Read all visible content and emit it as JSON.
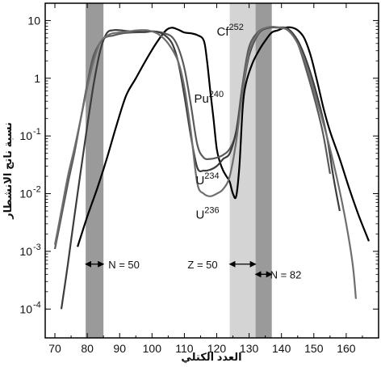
{
  "chart_data": {
    "type": "line",
    "title": "",
    "xlabel": "العدد الكتلي",
    "ylabel": "نسبة ناتج الانشطار",
    "xlim": [
      67,
      170
    ],
    "ylim_log10": [
      -4.5,
      1.3
    ],
    "y_scale": "log",
    "x_ticks": [
      70,
      80,
      90,
      100,
      110,
      120,
      130,
      140,
      150,
      160
    ],
    "x_tick_labels": [
      "70",
      "80",
      "90",
      "100",
      "110",
      "120",
      "130",
      "140",
      "150",
      "160"
    ],
    "y_ticks": [
      {
        "base": "10",
        "exp": "",
        "value": 10
      },
      {
        "base": "1",
        "exp": "",
        "value": 1
      },
      {
        "base": "10",
        "exp": "-1",
        "value": 0.1
      },
      {
        "base": "10",
        "exp": "-2",
        "value": 0.01
      },
      {
        "base": "10",
        "exp": "-3",
        "value": 0.001
      },
      {
        "base": "10",
        "exp": "-4",
        "value": 0.0001
      }
    ],
    "bands": [
      {
        "x0": 79.5,
        "x1": 85,
        "shade": "#9a9a9a"
      },
      {
        "x0": 124,
        "x1": 132,
        "shade": "#d4d4d4"
      },
      {
        "x0": 132,
        "x1": 137,
        "shade": "#9a9a9a"
      }
    ],
    "annotations": [
      {
        "text": "N = 50",
        "arrow_x": [
          79.5,
          85
        ],
        "y": 0.0006,
        "label_x": 86.5
      },
      {
        "text": "Z = 50",
        "arrow_x": [
          124,
          132
        ],
        "y": 0.0006,
        "label_x": 111
      },
      {
        "text": "N = 82",
        "arrow_x": [
          132,
          137
        ],
        "y": 0.0004,
        "label_x": 136.5
      }
    ],
    "series": [
      {
        "base": "Cf",
        "exp": "252",
        "color": "#000000",
        "label_pos": [
          120,
          5.5
        ],
        "points": [
          [
            77,
            0.0012
          ],
          [
            80,
            0.004
          ],
          [
            83,
            0.012
          ],
          [
            86,
            0.04
          ],
          [
            89,
            0.15
          ],
          [
            92,
            0.5
          ],
          [
            95,
            1.0
          ],
          [
            98,
            2.0
          ],
          [
            101,
            3.8
          ],
          [
            104,
            6.5
          ],
          [
            106,
            7.5
          ],
          [
            108,
            7.0
          ],
          [
            110,
            6.2
          ],
          [
            112,
            6.0
          ],
          [
            114,
            5.6
          ],
          [
            116,
            4.5
          ],
          [
            117,
            2.0
          ],
          [
            118,
            0.6
          ],
          [
            119,
            0.2
          ],
          [
            120,
            0.06
          ],
          [
            121,
            0.035
          ],
          [
            122,
            0.025
          ],
          [
            123,
            0.02
          ],
          [
            124,
            0.016
          ],
          [
            125,
            0.01
          ],
          [
            126,
            0.009
          ],
          [
            127,
            0.03
          ],
          [
            128,
            0.3
          ],
          [
            129,
            0.8
          ],
          [
            131,
            1.8
          ],
          [
            133,
            3.0
          ],
          [
            135,
            4.5
          ],
          [
            137,
            6.2
          ],
          [
            139,
            6.8
          ],
          [
            141,
            7.5
          ],
          [
            143,
            7.6
          ],
          [
            145,
            6.8
          ],
          [
            147,
            5.0
          ],
          [
            149,
            2.5
          ],
          [
            151,
            0.9
          ],
          [
            153,
            0.3
          ],
          [
            155,
            0.12
          ],
          [
            158,
            0.04
          ],
          [
            161,
            0.012
          ],
          [
            164,
            0.004
          ],
          [
            167,
            0.0015
          ]
        ]
      },
      {
        "base": "Pu",
        "exp": "240",
        "color": "#5a5a5a",
        "label_pos": [
          113,
          0.38
        ],
        "points": [
          [
            70,
            0.0011
          ],
          [
            72,
            0.004
          ],
          [
            74,
            0.015
          ],
          [
            76,
            0.05
          ],
          [
            78,
            0.2
          ],
          [
            80,
            0.8
          ],
          [
            82,
            2.5
          ],
          [
            85,
            4.8
          ],
          [
            88,
            5.5
          ],
          [
            91,
            6.0
          ],
          [
            94,
            6.2
          ],
          [
            97,
            6.3
          ],
          [
            100,
            6.5
          ],
          [
            103,
            6.2
          ],
          [
            106,
            5.3
          ],
          [
            108,
            3.5
          ],
          [
            110,
            1.5
          ],
          [
            112,
            0.35
          ],
          [
            114,
            0.07
          ],
          [
            116,
            0.042
          ],
          [
            118,
            0.04
          ],
          [
            120,
            0.042
          ],
          [
            122,
            0.047
          ],
          [
            124,
            0.06
          ],
          [
            126,
            0.12
          ],
          [
            128,
            0.8
          ],
          [
            130,
            3.5
          ],
          [
            133,
            6.5
          ],
          [
            136,
            7.5
          ],
          [
            139,
            7.5
          ],
          [
            142,
            6.8
          ],
          [
            145,
            4.0
          ],
          [
            148,
            1.2
          ],
          [
            151,
            0.3
          ],
          [
            153,
            0.1
          ],
          [
            155,
            0.022
          ]
        ]
      },
      {
        "base": "U",
        "exp": "234",
        "color": "#3c3c3c",
        "label_pos": [
          113.5,
          0.0145
        ],
        "points": [
          [
            72,
            0.0001
          ],
          [
            74,
            0.0006
          ],
          [
            76,
            0.004
          ],
          [
            78,
            0.025
          ],
          [
            80,
            0.15
          ],
          [
            82,
            0.8
          ],
          [
            84,
            3.0
          ],
          [
            86,
            6.0
          ],
          [
            88,
            6.8
          ],
          [
            90,
            6.8
          ],
          [
            92,
            6.6
          ],
          [
            95,
            6.4
          ],
          [
            98,
            6.3
          ],
          [
            100,
            6.5
          ],
          [
            103,
            6.0
          ],
          [
            106,
            4.2
          ],
          [
            108,
            2.0
          ],
          [
            110,
            0.5
          ],
          [
            112,
            0.1
          ],
          [
            114,
            0.028
          ],
          [
            116,
            0.025
          ],
          [
            118,
            0.026
          ],
          [
            120,
            0.03
          ],
          [
            122,
            0.04
          ],
          [
            124,
            0.05
          ],
          [
            126,
            0.12
          ],
          [
            128,
            0.6
          ],
          [
            130,
            2.5
          ],
          [
            133,
            6.0
          ],
          [
            136,
            7.5
          ],
          [
            139,
            7.6
          ],
          [
            142,
            7.2
          ],
          [
            145,
            4.5
          ],
          [
            148,
            1.8
          ],
          [
            151,
            0.5
          ],
          [
            154,
            0.1
          ],
          [
            156,
            0.02
          ],
          [
            158,
            0.005
          ]
        ]
      },
      {
        "base": "U",
        "exp": "236",
        "color": "#6e6e6e",
        "label_pos": [
          113.5,
          0.0037
        ],
        "points": [
          [
            70,
            0.0013
          ],
          [
            72,
            0.005
          ],
          [
            74,
            0.02
          ],
          [
            76,
            0.06
          ],
          [
            78,
            0.2
          ],
          [
            80,
            0.7
          ],
          [
            82,
            2.0
          ],
          [
            84,
            4.2
          ],
          [
            87,
            5.8
          ],
          [
            90,
            6.2
          ],
          [
            93,
            6.5
          ],
          [
            96,
            6.8
          ],
          [
            99,
            6.7
          ],
          [
            102,
            5.8
          ],
          [
            105,
            4.0
          ],
          [
            108,
            2.0
          ],
          [
            110,
            0.7
          ],
          [
            112,
            0.12
          ],
          [
            114,
            0.015
          ],
          [
            116,
            0.01
          ],
          [
            118,
            0.009
          ],
          [
            120,
            0.01
          ],
          [
            122,
            0.012
          ],
          [
            124,
            0.02
          ],
          [
            126,
            0.08
          ],
          [
            128,
            0.6
          ],
          [
            130,
            2.8
          ],
          [
            133,
            6.2
          ],
          [
            136,
            7.7
          ],
          [
            139,
            7.6
          ],
          [
            142,
            6.8
          ],
          [
            145,
            4.0
          ],
          [
            148,
            1.5
          ],
          [
            151,
            0.4
          ],
          [
            154,
            0.1
          ],
          [
            157,
            0.02
          ],
          [
            160,
            0.003
          ],
          [
            162,
            0.0006
          ],
          [
            163,
            0.00015
          ]
        ]
      }
    ]
  }
}
